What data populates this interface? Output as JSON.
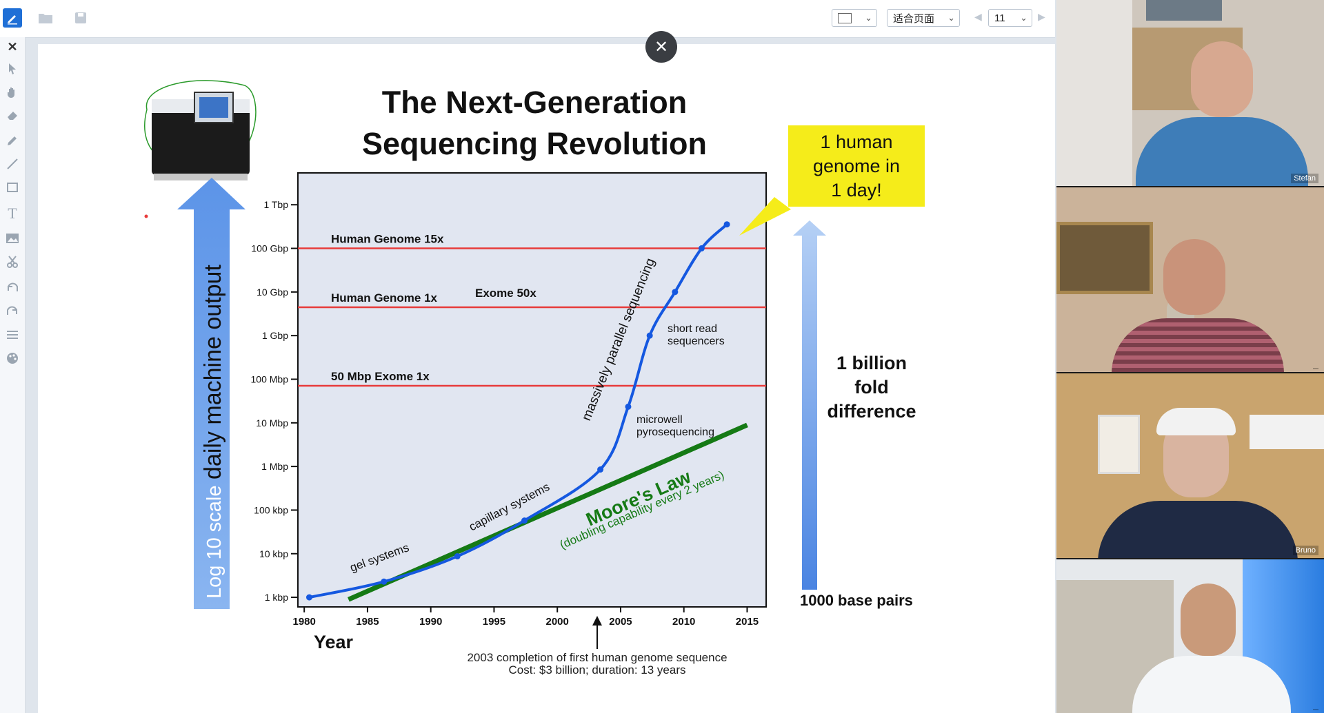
{
  "toolbar": {
    "shape_select": "",
    "fit_select": "适合页面",
    "page_number": "11"
  },
  "slide": {
    "title_line1": "The Next-Generation",
    "title_line2": "Sequencing Revolution",
    "callout": [
      "1 human",
      "genome in",
      "1 day!"
    ],
    "left_arrow": {
      "a": "Log 10 scale",
      "b": "daily machine output"
    },
    "right_arrow": {
      "top": [
        "1 billion",
        "fold",
        "difference"
      ],
      "bottom": "1000 base pairs"
    },
    "footnote_line1": "2003 completion of first human genome sequence",
    "footnote_line2": "Cost: $3 billion; duration: 13 years"
  },
  "chart_data": {
    "type": "line",
    "xlabel": "Year",
    "ylabel": "",
    "x_ticks": [
      1980,
      1985,
      1990,
      1995,
      2000,
      2005,
      2010,
      2015
    ],
    "y_ticks": [
      "1 kbp",
      "10 kbp",
      "100 kbp",
      "1 Mbp",
      "10 Mbp",
      "100 Mbp",
      "1 Gbp",
      "10 Gbp",
      "100 Gbp",
      "1 Tbp"
    ],
    "y_scale": "log10",
    "xlim": [
      1979.5,
      2016.5
    ],
    "ylim_log10": [
      2.78,
      12.73
    ],
    "series": [
      {
        "points": [
          [
            1980.4,
            3.0
          ],
          [
            1986.3,
            3.36
          ],
          [
            1992.1,
            3.94
          ],
          [
            1997.4,
            4.76
          ],
          [
            2003.4,
            5.93
          ],
          [
            2005.6,
            7.37
          ],
          [
            2007.3,
            9.0
          ],
          [
            2009.3,
            10.0
          ],
          [
            2011.4,
            11.0
          ],
          [
            2013.4,
            11.55
          ]
        ]
      }
    ],
    "thresholds": [
      {
        "label": "Human Genome 15x",
        "log10": 11
      },
      {
        "label": "Human Genome 1x",
        "log10": 9.65
      },
      {
        "label": "50 Mbp Exome 1x",
        "log10": 7.85
      }
    ],
    "moores_law": {
      "label": "Moore's Law",
      "sublabel": "(doubling capability every 2 years)",
      "from": [
        1983.5,
        2.95
      ],
      "to": [
        2015.0,
        6.95
      ]
    },
    "annotations": [
      {
        "text": "Exome 50x"
      },
      {
        "text": "gel systems"
      },
      {
        "text": "capillary systems"
      },
      {
        "text": "massively parallel sequencing"
      },
      {
        "text": "short read"
      },
      {
        "text": "sequencers"
      },
      {
        "text": "microwell"
      },
      {
        "text": "pyrosequencing"
      }
    ],
    "colors": {
      "curve": "#1558e0",
      "moore": "#157a15",
      "threshold": "#e83b3b",
      "plot_bg": "#e1e6f1"
    }
  },
  "video": {
    "tiles": [
      {
        "name": "Stefan"
      },
      {
        "name": ""
      },
      {
        "name": "Bruno"
      },
      {
        "name": ""
      }
    ]
  }
}
